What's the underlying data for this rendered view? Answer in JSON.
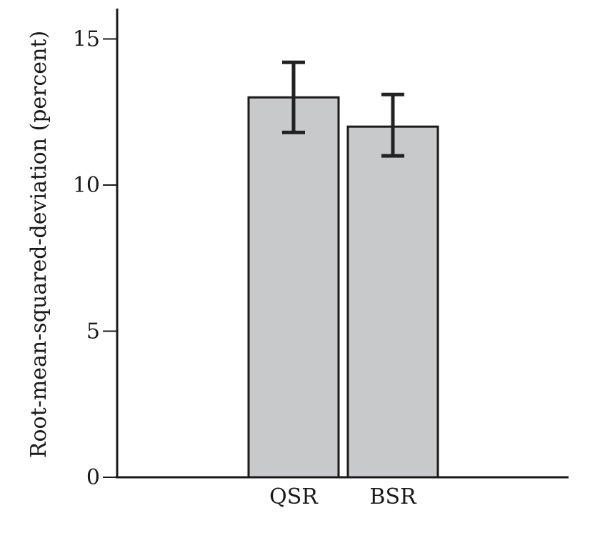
{
  "chart_data": {
    "type": "bar",
    "title": "",
    "xlabel": "",
    "ylabel": "Root-mean-squared-deviation (percent)",
    "categories": [
      "QSR",
      "BSR"
    ],
    "values": [
      13.0,
      12.0
    ],
    "error_low": [
      11.8,
      11.0
    ],
    "error_high": [
      14.2,
      13.1
    ],
    "ylim": [
      0,
      16
    ],
    "yticks": [
      0,
      5,
      10,
      15
    ],
    "bar_color": "#c8c9cb",
    "edge_color": "#1a1a1a",
    "grid": false
  }
}
